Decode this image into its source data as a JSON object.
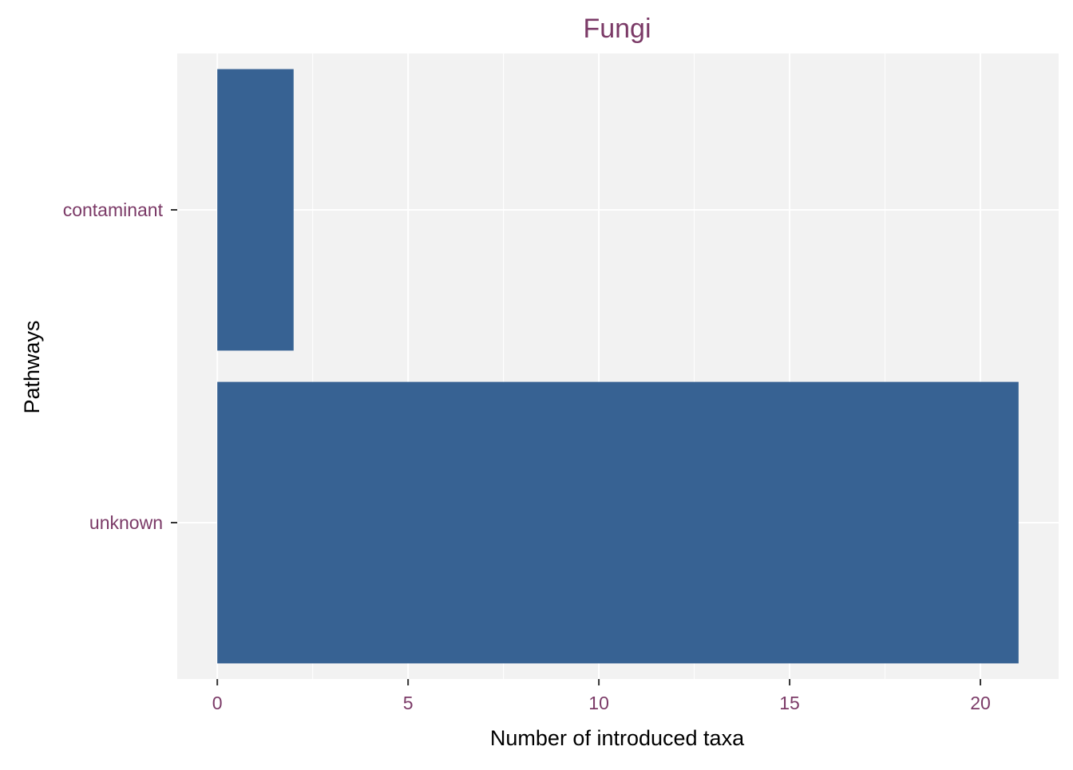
{
  "chart_data": {
    "type": "bar",
    "orientation": "horizontal",
    "title": "Fungi",
    "xlabel": "Number of introduced taxa",
    "ylabel": "Pathways",
    "categories": [
      "contaminant",
      "unknown"
    ],
    "values": [
      2,
      21
    ],
    "xlim": [
      -1.05,
      22.05
    ],
    "x_ticks": [
      0,
      5,
      10,
      15,
      20
    ],
    "grid": true,
    "legend": "none"
  },
  "colors": {
    "bar": "#376293",
    "panel_background": "#f2f2f2",
    "grid_line": "#ffffff",
    "title_text": "#7b3a67",
    "tick_text": "#7b3a67",
    "axis_title_text": "#000000"
  }
}
